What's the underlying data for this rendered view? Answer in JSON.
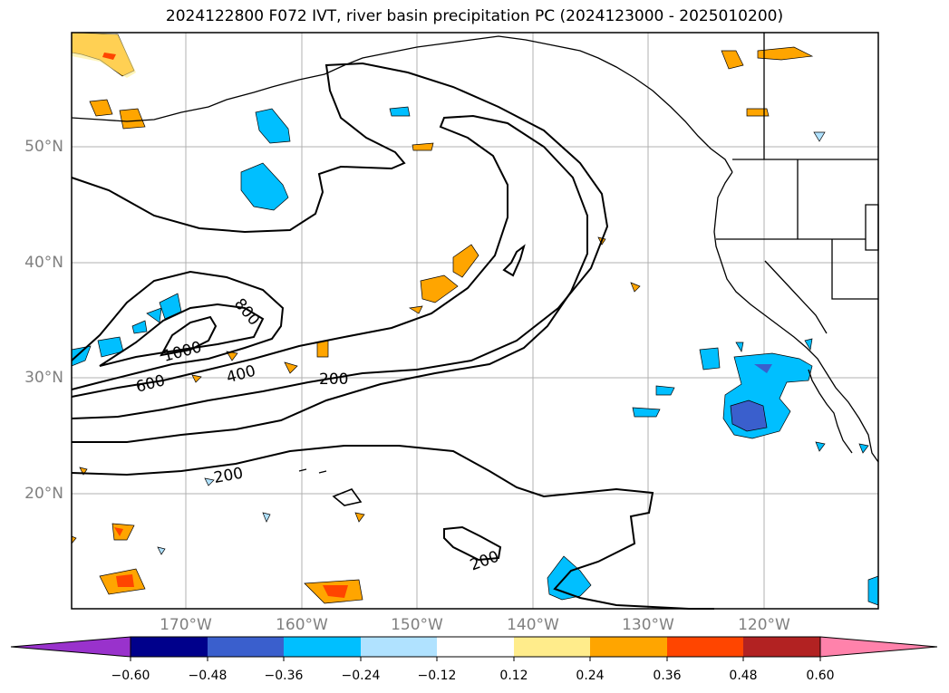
{
  "title": "2024122800 F072 IVT, river basin precipitation PC (2024123000 - 2025010200)",
  "lat_labels": [
    "50°N",
    "40°N",
    "30°N",
    "20°N"
  ],
  "lon_labels": [
    "170°W",
    "160°W",
    "150°W",
    "140°W",
    "130°W",
    "120°W"
  ],
  "contour_labels": [
    "800",
    "1000",
    "600",
    "400",
    "200",
    "200",
    "200"
  ],
  "colorbar": {
    "colors": [
      "#9932cc",
      "#00008b",
      "#3a5fcd",
      "#00bfff",
      "#b0e2ff",
      "#ffffff",
      "#ffec8b",
      "#ffa500",
      "#ff4500",
      "#b22222",
      "#ff82ab"
    ],
    "tick_labels": [
      "−0.60",
      "−0.48",
      "−0.36",
      "−0.24",
      "−0.12",
      "0.12",
      "0.24",
      "0.36",
      "0.48",
      "0.60"
    ]
  }
}
